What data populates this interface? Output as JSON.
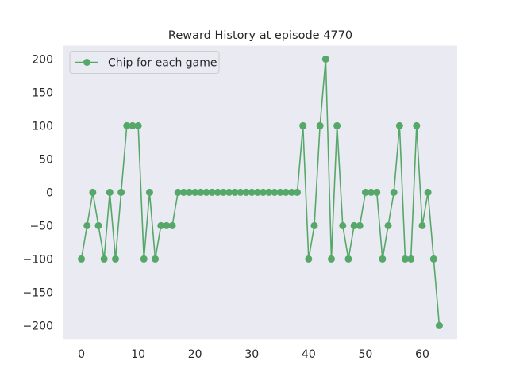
{
  "chart_data": {
    "type": "line",
    "title": "Reward History at episode 4770",
    "xlabel": "",
    "ylabel": "",
    "xlim": [
      -3.15,
      66.15
    ],
    "ylim": [
      -220,
      220
    ],
    "xticks": [
      0,
      10,
      20,
      30,
      40,
      50,
      60
    ],
    "yticks": [
      -200,
      -150,
      -100,
      -50,
      0,
      50,
      100,
      150,
      200
    ],
    "xtick_labels": [
      "0",
      "10",
      "20",
      "30",
      "40",
      "50",
      "60"
    ],
    "ytick_labels": [
      "−200",
      "−150",
      "−100",
      "−50",
      "0",
      "50",
      "100",
      "150",
      "200"
    ],
    "grid": false,
    "legend_position": "top-left",
    "background_color": "#eaeaf2",
    "series": [
      {
        "name": "Chip for each game",
        "color": "#55a868",
        "marker": "circle",
        "x": [
          0,
          1,
          2,
          3,
          4,
          5,
          6,
          7,
          8,
          9,
          10,
          11,
          12,
          13,
          14,
          15,
          16,
          17,
          18,
          19,
          20,
          21,
          22,
          23,
          24,
          25,
          26,
          27,
          28,
          29,
          30,
          31,
          32,
          33,
          34,
          35,
          36,
          37,
          38,
          39,
          40,
          41,
          42,
          43,
          44,
          45,
          46,
          47,
          48,
          49,
          50,
          51,
          52,
          53,
          54,
          55,
          56,
          57,
          58,
          59,
          60,
          61,
          62,
          63
        ],
        "y": [
          -100,
          -50,
          0,
          -50,
          -100,
          0,
          -100,
          0,
          100,
          100,
          100,
          -100,
          0,
          -100,
          -50,
          -50,
          -50,
          0,
          0,
          0,
          0,
          0,
          0,
          0,
          0,
          0,
          0,
          0,
          0,
          0,
          0,
          0,
          0,
          0,
          0,
          0,
          0,
          0,
          0,
          100,
          -100,
          -50,
          100,
          200,
          -100,
          100,
          -50,
          -100,
          -50,
          -50,
          0,
          0,
          0,
          -100,
          -50,
          0,
          100,
          -100,
          -100,
          100,
          -50,
          0,
          -100,
          -200
        ]
      }
    ]
  }
}
